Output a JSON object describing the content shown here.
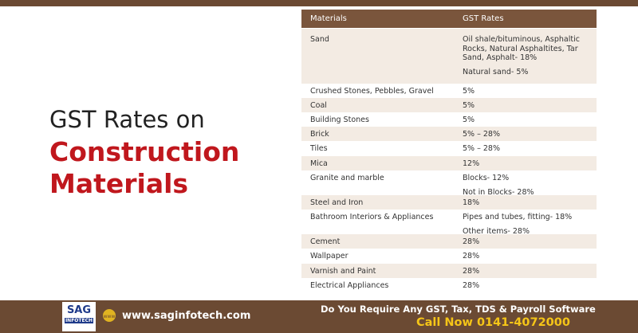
{
  "header": {
    "title_line1": "GST Rates on",
    "title_line2": "Construction",
    "title_line3": "Materials"
  },
  "table": {
    "columns": [
      "Materials",
      "GST Rates"
    ],
    "rows": [
      [
        "Sand",
        [
          "Oil shale/bituminous, Asphaltic Rocks, Natural Asphaltites, Tar Sand, Asphalt- 18%",
          "Natural sand- 5%"
        ]
      ],
      [
        "Crushed Stones, Pebbles, Gravel",
        [
          "5%"
        ]
      ],
      [
        "Coal",
        [
          "5%"
        ]
      ],
      [
        "Building Stones",
        [
          "5%"
        ]
      ],
      [
        "Brick",
        [
          "5% – 28%"
        ]
      ],
      [
        "Tiles",
        [
          "5% – 28%"
        ]
      ],
      [
        "Mica",
        [
          "12%"
        ]
      ],
      [
        "Granite and marble",
        [
          "Blocks- 12%",
          "Not in Blocks- 28%"
        ]
      ],
      [
        "Steel and Iron",
        [
          "18%"
        ]
      ],
      [
        "Bathroom Interiors & Appliances",
        [
          "Pipes and tubes, fitting- 18%",
          "Other items- 28%"
        ]
      ],
      [
        "Cement",
        [
          "28%"
        ]
      ],
      [
        "Wallpaper",
        [
          "28%"
        ]
      ],
      [
        "Varnish and Paint",
        [
          "28%"
        ]
      ],
      [
        "Electrical Appliances",
        [
          "28%"
        ]
      ]
    ]
  },
  "footer": {
    "logo": "SAG",
    "logo_sub": "INFOTECH",
    "website": "www.saginfotech.com",
    "question": "Do You Require Any GST, Tax, TDS & Payroll Software",
    "call": "Call Now 0141-4072000"
  }
}
